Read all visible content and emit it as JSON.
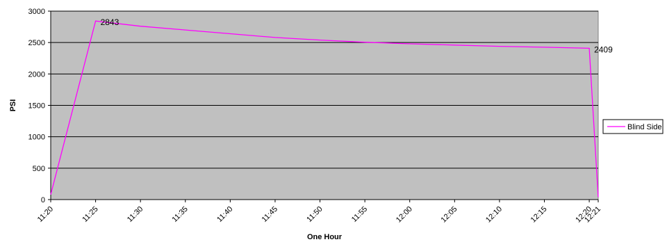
{
  "chart_data": {
    "type": "line",
    "title": "",
    "xlabel": "One Hour",
    "ylabel": "PSI",
    "x": [
      "11:20",
      "11:25",
      "11:30",
      "11:35",
      "11:40",
      "11:45",
      "11:50",
      "11:55",
      "12:00",
      "12:05",
      "12:10",
      "12:15",
      "12:20",
      "12:21"
    ],
    "ylim": [
      0,
      3000
    ],
    "yticks": [
      0,
      500,
      1000,
      1500,
      2000,
      2500,
      3000
    ],
    "grid": true,
    "plot_background": "#c0c0c0",
    "legend_position": "right",
    "series": [
      {
        "name": "Blind Side",
        "color": "#ff00ff",
        "values": [
          80,
          2843,
          2760,
          2700,
          2640,
          2580,
          2540,
          2505,
          2480,
          2460,
          2440,
          2425,
          2409,
          40
        ]
      }
    ],
    "annotations": [
      {
        "index": 1,
        "text": "2843"
      },
      {
        "index": 12,
        "text": "2409"
      }
    ]
  }
}
